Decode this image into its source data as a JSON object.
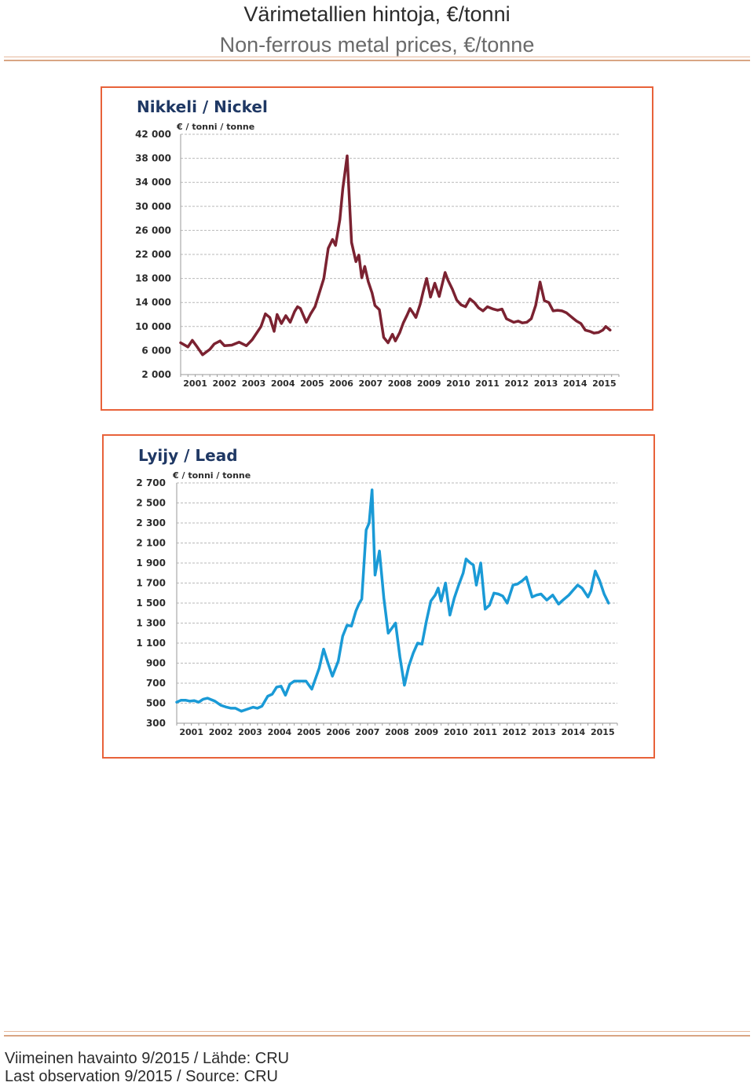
{
  "header": {
    "title_fi": "Värimetallien hintoja, €/tonni",
    "title_en": "Non-ferrous metal prices, €/tonne"
  },
  "footer": {
    "line_fi": "Viimeinen havainto 9/2015 /  Lähde: CRU",
    "line_en": "Last observation 9/2015 / Source: CRU"
  },
  "colors": {
    "nickel_line": "#7b2231",
    "lead_line": "#1a9ad6",
    "panel_border": "#e8623a",
    "title_text": "#1f3864"
  },
  "chart_data": [
    {
      "type": "line",
      "title": "Nikkeli / Nickel",
      "ylabel": "€ / tonni / tonne",
      "xlabel": "",
      "ylim": [
        2000,
        42000
      ],
      "yticks": [
        42000,
        38000,
        34000,
        30000,
        26000,
        22000,
        18000,
        14000,
        10000,
        6000,
        2000
      ],
      "ytick_labels": [
        "42 000",
        "38 000",
        "34 000",
        "30 000",
        "26 000",
        "22 000",
        "18 000",
        "14 000",
        "10 000",
        "6 000",
        "2 000"
      ],
      "xlim": [
        2001,
        2016
      ],
      "xtick_labels": [
        "2001",
        "2002",
        "2003",
        "2004",
        "2005",
        "2006",
        "2007",
        "2008",
        "2009",
        "2010",
        "2011",
        "2012",
        "2013",
        "2014",
        "2015"
      ],
      "grid": true,
      "series": [
        {
          "color": "#7b2231",
          "x": [
            2001.0,
            2001.25,
            2001.4,
            2001.55,
            2001.75,
            2002.0,
            2002.15,
            2002.35,
            2002.5,
            2002.75,
            2003.0,
            2003.25,
            2003.45,
            2003.75,
            2003.9,
            2004.05,
            2004.2,
            2004.3,
            2004.45,
            2004.6,
            2004.75,
            2004.9,
            2005.0,
            2005.1,
            2005.3,
            2005.45,
            2005.6,
            2005.9,
            2006.05,
            2006.2,
            2006.3,
            2006.45,
            2006.55,
            2006.7,
            2006.85,
            2007.0,
            2007.1,
            2007.2,
            2007.3,
            2007.42,
            2007.55,
            2007.65,
            2007.8,
            2007.95,
            2008.1,
            2008.25,
            2008.35,
            2008.5,
            2008.62,
            2008.75,
            2008.85,
            2008.95,
            2009.05,
            2009.2,
            2009.3,
            2009.42,
            2009.55,
            2009.7,
            2009.85,
            2010.05,
            2010.15,
            2010.3,
            2010.45,
            2010.6,
            2010.75,
            2010.9,
            2011.05,
            2011.2,
            2011.35,
            2011.5,
            2011.7,
            2011.85,
            2012.0,
            2012.15,
            2012.4,
            2012.55,
            2012.7,
            2012.85,
            2013.0,
            2013.15,
            2013.3,
            2013.45,
            2013.6,
            2013.75,
            2013.9,
            2014.05,
            2014.2,
            2014.35,
            2014.45,
            2014.55,
            2014.7,
            2014.85,
            2015.0,
            2015.15,
            2015.3,
            2015.45,
            2015.55,
            2015.7
          ],
          "values": [
            7300,
            6600,
            7700,
            6700,
            5300,
            6200,
            7100,
            7600,
            6800,
            6900,
            7400,
            6800,
            7800,
            10000,
            12100,
            11500,
            9200,
            12000,
            10500,
            11800,
            10700,
            12500,
            13300,
            13000,
            10700,
            12100,
            13300,
            18000,
            23000,
            24500,
            23500,
            27800,
            33000,
            38400,
            24000,
            20800,
            21900,
            18100,
            20000,
            17500,
            15600,
            13500,
            12800,
            8200,
            7300,
            8700,
            7600,
            9000,
            10600,
            11900,
            13000,
            12300,
            11500,
            13700,
            15800,
            18000,
            14900,
            17200,
            15000,
            19000,
            17700,
            16200,
            14400,
            13600,
            13300,
            14600,
            14000,
            13100,
            12600,
            13300,
            12900,
            12700,
            12900,
            11300,
            10700,
            10900,
            10600,
            10700,
            11300,
            13500,
            17400,
            14300,
            14000,
            12600,
            12700,
            12600,
            12300,
            11700,
            11300,
            10900,
            10500,
            9400,
            9200,
            8900,
            9000,
            9400,
            10000,
            9400
          ]
        }
      ]
    },
    {
      "type": "line",
      "title": "Lyijy / Lead",
      "ylabel": "€ / tonni / tonne",
      "xlabel": "",
      "ylim": [
        300,
        2700
      ],
      "yticks": [
        2700,
        2500,
        2300,
        2100,
        1900,
        1700,
        1500,
        1300,
        1100,
        900,
        700,
        500,
        300
      ],
      "ytick_labels": [
        "2 700",
        "2 500",
        "2 300",
        "2 100",
        "1 900",
        "1 700",
        "1 500",
        "1 300",
        "1 100",
        "900",
        "700",
        "500",
        "300"
      ],
      "xlim": [
        2001,
        2016
      ],
      "xtick_labels": [
        "2001",
        "2002",
        "2003",
        "2004",
        "2005",
        "2006",
        "2007",
        "2008",
        "2009",
        "2010",
        "2011",
        "2012",
        "2013",
        "2014",
        "2015"
      ],
      "grid": true,
      "series": [
        {
          "color": "#1a9ad6",
          "x": [
            2001.0,
            2001.15,
            2001.3,
            2001.45,
            2001.6,
            2001.75,
            2001.9,
            2002.05,
            2002.3,
            2002.5,
            2002.7,
            2002.85,
            2003.0,
            2003.2,
            2003.4,
            2003.6,
            2003.75,
            2003.9,
            2004.1,
            2004.25,
            2004.4,
            2004.55,
            2004.7,
            2004.85,
            2005.0,
            2005.15,
            2005.3,
            2005.4,
            2005.6,
            2005.85,
            2006.0,
            2006.15,
            2006.3,
            2006.5,
            2006.65,
            2006.8,
            2006.95,
            2007.1,
            2007.2,
            2007.3,
            2007.45,
            2007.55,
            2007.65,
            2007.75,
            2007.9,
            2008.05,
            2008.2,
            2008.35,
            2008.45,
            2008.6,
            2008.75,
            2008.9,
            2009.05,
            2009.2,
            2009.35,
            2009.5,
            2009.65,
            2009.8,
            2009.9,
            2010.0,
            2010.15,
            2010.3,
            2010.45,
            2010.6,
            2010.75,
            2010.85,
            2011.0,
            2011.1,
            2011.2,
            2011.35,
            2011.5,
            2011.65,
            2011.8,
            2011.95,
            2012.1,
            2012.25,
            2012.45,
            2012.6,
            2012.75,
            2012.9,
            2013.1,
            2013.25,
            2013.4,
            2013.6,
            2013.8,
            2014.0,
            2014.15,
            2014.35,
            2014.5,
            2014.65,
            2014.8,
            2015.0,
            2015.1,
            2015.25,
            2015.4,
            2015.55,
            2015.7
          ],
          "values": [
            510,
            530,
            530,
            520,
            525,
            510,
            540,
            550,
            520,
            480,
            460,
            450,
            450,
            420,
            440,
            460,
            450,
            470,
            570,
            590,
            660,
            670,
            580,
            690,
            720,
            720,
            720,
            720,
            640,
            850,
            1040,
            900,
            770,
            920,
            1170,
            1280,
            1270,
            1420,
            1490,
            1540,
            2230,
            2300,
            2630,
            1780,
            2020,
            1550,
            1200,
            1260,
            1300,
            960,
            680,
            870,
            1000,
            1100,
            1090,
            1320,
            1520,
            1580,
            1650,
            1520,
            1700,
            1380,
            1550,
            1680,
            1800,
            1940,
            1900,
            1880,
            1680,
            1900,
            1440,
            1480,
            1600,
            1590,
            1570,
            1500,
            1680,
            1690,
            1720,
            1760,
            1560,
            1580,
            1590,
            1530,
            1580,
            1490,
            1530,
            1580,
            1630,
            1680,
            1650,
            1560,
            1620,
            1820,
            1720,
            1590,
            1500
          ]
        }
      ]
    }
  ]
}
